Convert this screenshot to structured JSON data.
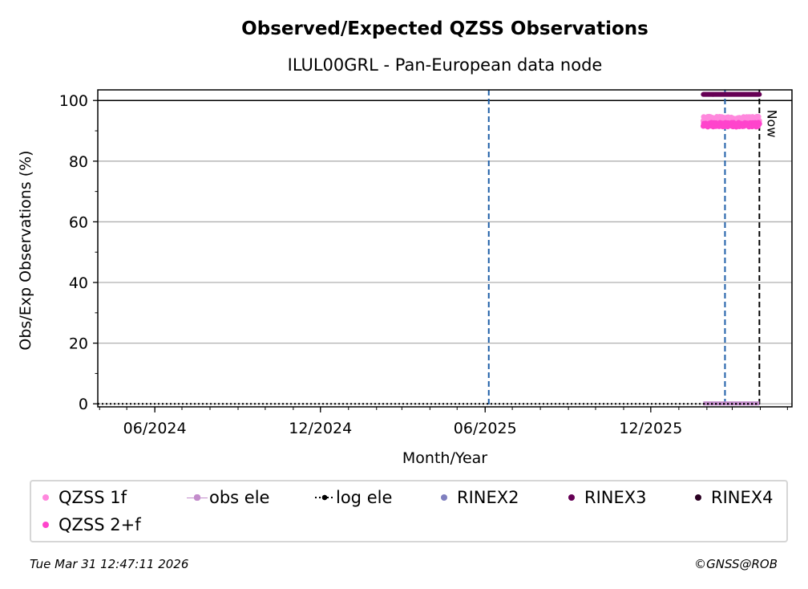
{
  "chart_data": {
    "type": "scatter",
    "title": "Observed/Expected QZSS Observations",
    "subtitle": "ILUL00GRL - Pan-European data node",
    "xlabel": "Month/Year",
    "ylabel": "Obs/Exp Observations (%)",
    "xlim": [
      "2024-03-30",
      "2026-05-06"
    ],
    "ylim": [
      -1,
      103.5
    ],
    "x_ticks": [
      {
        "date": "2024-06-01",
        "label": "06/2024"
      },
      {
        "date": "2024-12-01",
        "label": "12/2024"
      },
      {
        "date": "2025-06-01",
        "label": "06/2025"
      },
      {
        "date": "2025-12-01",
        "label": "12/2025"
      }
    ],
    "y_ticks": [
      0,
      20,
      40,
      60,
      80,
      100
    ],
    "grid": "y-major",
    "reference_line_y": 100,
    "vlines": [
      {
        "date": "2025-06-05",
        "color": "#1f5fa8",
        "style": "dashed"
      },
      {
        "date": "2026-02-21",
        "color": "#1f5fa8",
        "style": "dashed"
      },
      {
        "date": "2026-03-31",
        "color": "#000000",
        "style": "dashed",
        "label": "Now"
      }
    ],
    "series": [
      {
        "name": "QZSS 1f",
        "color": "#ff88dd",
        "start": "2026-01-28",
        "end": "2026-03-31",
        "value": 94
      },
      {
        "name": "QZSS 2+f",
        "color": "#ff44cc",
        "start": "2026-01-28",
        "end": "2026-03-31",
        "value": 92
      },
      {
        "name": "obs ele",
        "color": "#c38ccb",
        "start": "2026-01-28",
        "end": "2026-03-31",
        "value": 0
      },
      {
        "name": "log ele",
        "color": "#000000",
        "start": "2024-03-30",
        "end": "2026-03-31",
        "value": 0
      },
      {
        "name": "RINEX2",
        "color": "#7f7fbf"
      },
      {
        "name": "RINEX3",
        "color": "#660055",
        "start": "2026-01-28",
        "end": "2026-03-31",
        "value": 102
      },
      {
        "name": "RINEX4",
        "color": "#2a0022"
      }
    ],
    "legend_placement": "bottom"
  },
  "footer": {
    "timestamp": "Tue Mar 31 12:47:11 2026",
    "credit": "©GNSS@ROB"
  }
}
